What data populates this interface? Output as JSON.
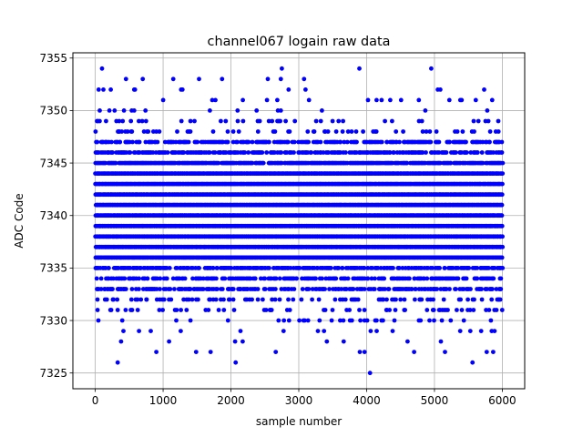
{
  "chart_data": {
    "type": "scatter",
    "title": "channel067 logain raw data",
    "xlabel": "sample number",
    "ylabel": "ADC Code",
    "xlim": [
      -330,
      6330
    ],
    "ylim": [
      7323.5,
      7355.5
    ],
    "x_ticks": [
      0,
      1000,
      2000,
      3000,
      4000,
      5000,
      6000
    ],
    "x_tick_labels": [
      "0",
      "1000",
      "2000",
      "3000",
      "4000",
      "5000",
      "6000"
    ],
    "y_ticks": [
      7325,
      7330,
      7335,
      7340,
      7345,
      7350,
      7355
    ],
    "y_tick_labels": [
      "7325",
      "7330",
      "7335",
      "7340",
      "7345",
      "7350",
      "7355"
    ],
    "grid": true,
    "marker_color": "#0000ff",
    "n_samples": 6000,
    "level_min": 7325,
    "level_max": 7354,
    "level_density": {
      "7325": 0.0005,
      "7326": 0.003,
      "7327": 0.01,
      "7328": 0.02,
      "7329": 0.04,
      "7330": 0.09,
      "7331": 0.14,
      "7332": 0.22,
      "7333": 0.55,
      "7334": 0.55,
      "7335": 0.65,
      "7336": 1.0,
      "7337": 1.0,
      "7338": 1.0,
      "7339": 1.0,
      "7340": 1.0,
      "7341": 1.0,
      "7342": 1.0,
      "7343": 1.0,
      "7344": 1.0,
      "7345": 0.9,
      "7346": 0.65,
      "7347": 0.55,
      "7348": 0.15,
      "7349": 0.08,
      "7350": 0.04,
      "7351": 0.02,
      "7352": 0.01,
      "7353": 0.006,
      "7354": 0.003
    },
    "outliers": [
      {
        "x": 50,
        "y": 7352
      },
      {
        "x": 100,
        "y": 7354
      },
      {
        "x": 120,
        "y": 7352
      },
      {
        "x": 330,
        "y": 7326
      },
      {
        "x": 380,
        "y": 7328
      },
      {
        "x": 700,
        "y": 7353
      },
      {
        "x": 1000,
        "y": 7351
      },
      {
        "x": 1150,
        "y": 7353
      },
      {
        "x": 1530,
        "y": 7353
      },
      {
        "x": 1870,
        "y": 7353
      },
      {
        "x": 2070,
        "y": 7326
      },
      {
        "x": 1700,
        "y": 7327
      },
      {
        "x": 900,
        "y": 7327
      },
      {
        "x": 2750,
        "y": 7354
      },
      {
        "x": 2850,
        "y": 7352
      },
      {
        "x": 3100,
        "y": 7352
      },
      {
        "x": 3150,
        "y": 7351
      },
      {
        "x": 4050,
        "y": 7325
      },
      {
        "x": 3970,
        "y": 7327
      },
      {
        "x": 4020,
        "y": 7351
      },
      {
        "x": 4220,
        "y": 7351
      },
      {
        "x": 4770,
        "y": 7351
      },
      {
        "x": 5220,
        "y": 7351
      },
      {
        "x": 5560,
        "y": 7326
      },
      {
        "x": 5770,
        "y": 7327
      },
      {
        "x": 5850,
        "y": 7351
      },
      {
        "x": 2660,
        "y": 7327
      },
      {
        "x": 4700,
        "y": 7327
      }
    ]
  }
}
